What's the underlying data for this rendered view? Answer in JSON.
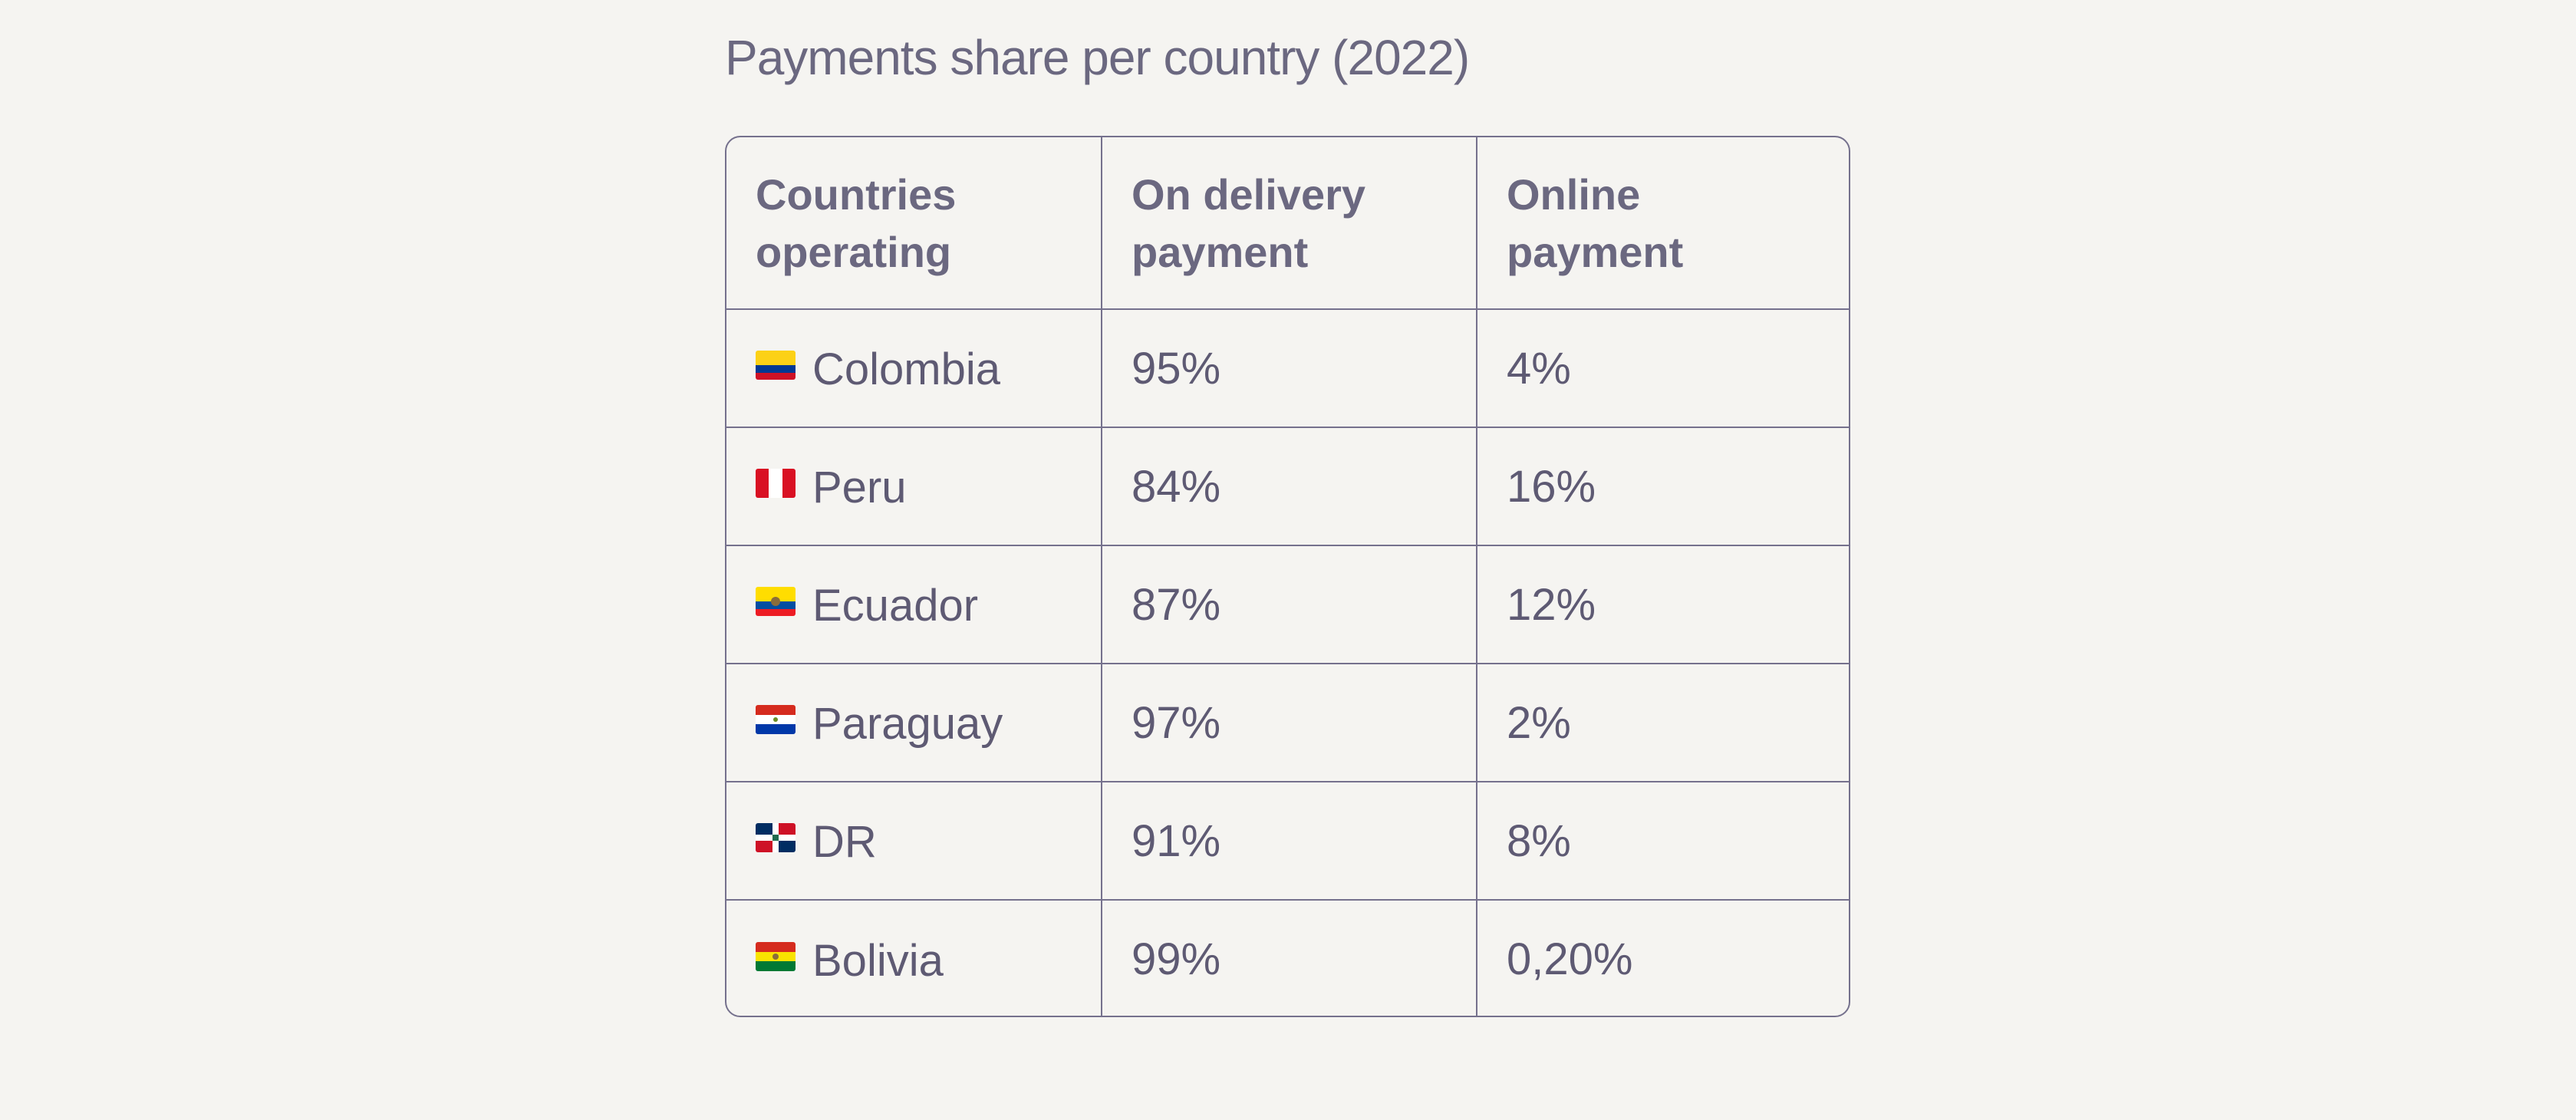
{
  "title": "Payments share per country (2022)",
  "table": {
    "headers": [
      {
        "line1": "Countries",
        "line2": "operating"
      },
      {
        "line1": "On delivery",
        "line2": "payment"
      },
      {
        "line1": "Online",
        "line2": "payment"
      }
    ],
    "rows": [
      {
        "country": "Colombia",
        "flag_icon": "colombia-flag-icon",
        "on_delivery": "95%",
        "online": "4%"
      },
      {
        "country": "Peru",
        "flag_icon": "peru-flag-icon",
        "on_delivery": "84%",
        "online": "16%"
      },
      {
        "country": "Ecuador",
        "flag_icon": "ecuador-flag-icon",
        "on_delivery": "87%",
        "online": "12%"
      },
      {
        "country": "Paraguay",
        "flag_icon": "paraguay-flag-icon",
        "on_delivery": "97%",
        "online": "2%"
      },
      {
        "country": "DR",
        "flag_icon": "dominican-republic-flag-icon",
        "on_delivery": "91%",
        "online": "8%"
      },
      {
        "country": "Bolivia",
        "flag_icon": "bolivia-flag-icon",
        "on_delivery": "99%",
        "online": "0,20%"
      }
    ]
  },
  "colors": {
    "background": "#f5f4f1",
    "text": "#605c75",
    "border": "#75718d"
  }
}
